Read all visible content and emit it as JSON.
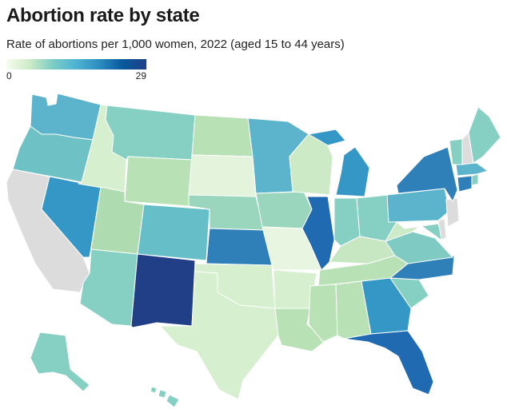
{
  "title": "Abortion rate by state",
  "subtitle": "Rate of abortions per 1,000 women, 2022 (aged 15 to 44 years)",
  "legend": {
    "min": "0",
    "max": "29",
    "color_low": "#f7fcf0",
    "color_high": "#213f86"
  },
  "no_data_color": "#dcdcdc"
}
